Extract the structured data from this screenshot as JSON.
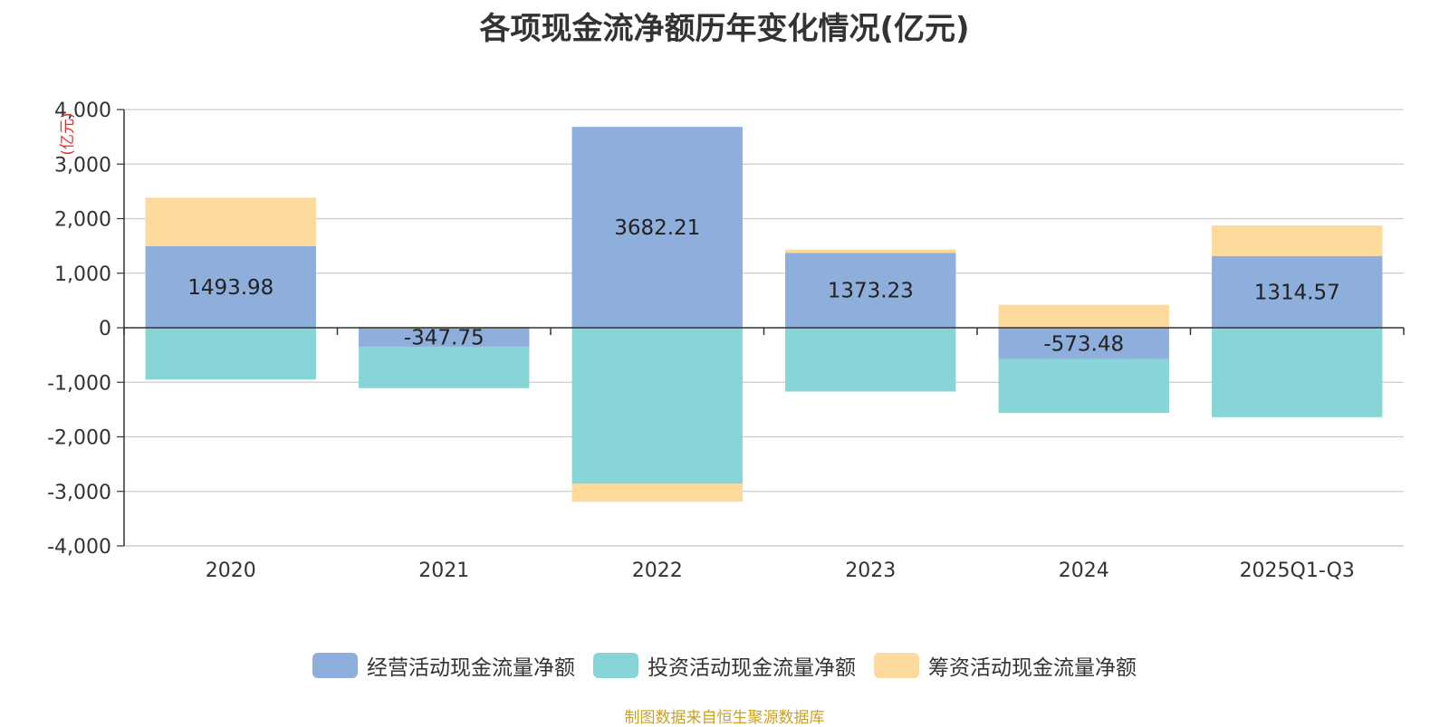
{
  "title": "各项现金流净额历年变化情况(亿元)",
  "source": "制图数据来自恒生聚源数据库",
  "chart_data": {
    "type": "bar",
    "stacked": true,
    "categories": [
      "2020",
      "2021",
      "2022",
      "2023",
      "2024",
      "2025Q1-Q3"
    ],
    "ylabel": "(亿元)",
    "ylim": [
      -4000,
      4000
    ],
    "yticks": [
      4000,
      3000,
      2000,
      1000,
      0,
      -1000,
      -2000,
      -3000,
      -4000
    ],
    "ytick_labels": [
      "4,000",
      "3,000",
      "2,000",
      "1,000",
      "0",
      "-1,000",
      "-2,000",
      "-3,000",
      "-4,000"
    ],
    "grid": true,
    "legend_position": "bottom",
    "series": [
      {
        "name": "经营活动现金流量净额",
        "color": "#8eaedb",
        "values": [
          1493.98,
          -347.75,
          3682.21,
          1373.23,
          -573.48,
          1314.57
        ],
        "labels": [
          "1493.98",
          "-347.75",
          "3682.21",
          "1373.23",
          "-573.48",
          "1314.57"
        ]
      },
      {
        "name": "投资活动现金流量净额",
        "color": "#88d5d8",
        "values": [
          -950,
          -760,
          -2860,
          -1170,
          -990,
          -1640
        ]
      },
      {
        "name": "筹资活动现金流量净额",
        "color": "#fdd99b",
        "values": [
          890,
          20,
          -330,
          60,
          420,
          560
        ]
      }
    ]
  }
}
